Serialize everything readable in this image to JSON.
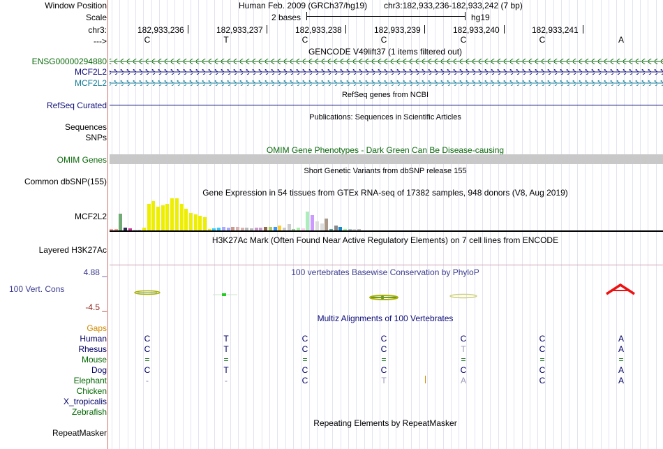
{
  "header": {
    "window_position_label": "Window Position",
    "scale_label": "Scale",
    "chrom_label": "chr3:",
    "strand_label": "--->",
    "assembly": "Human Feb. 2009 (GRCh37/hg19)",
    "position": "chr3:182,933,236-182,933,242 (7 bp)",
    "scale_text": "2 bases",
    "scale_db": "hg19",
    "coordinates": [
      "182,933,236",
      "182,933,237",
      "182,933,238",
      "182,933,239",
      "182,933,240",
      "182,933,241"
    ],
    "bases": [
      "C",
      "T",
      "C",
      "C",
      "C",
      "C",
      "A"
    ]
  },
  "tracks": {
    "gencode": {
      "title": "GENCODE V49lift37 (1 items filtered out)",
      "items": [
        "ENSG00000294880",
        "MCF2L2",
        "MCF2L2"
      ]
    },
    "refseq": {
      "title": "RefSeq genes from NCBI",
      "label": "RefSeq Curated"
    },
    "publications": {
      "title": "Publications: Sequences in Scientific Articles",
      "labels": [
        "Sequences",
        "SNPs"
      ]
    },
    "omim": {
      "title": "OMIM Gene Phenotypes - Dark Green Can Be Disease-causing",
      "label": "OMIM Genes"
    },
    "dbsnp": {
      "title": "Short Genetic Variants from dbSNP release 155",
      "label": "Common dbSNP(155)"
    },
    "gtex": {
      "title": "Gene Expression in 54 tissues from GTEx RNA-seq of 17382 samples, 948 donors (V8, Aug 2019)",
      "label": "MCF2L2"
    },
    "h3k27ac": {
      "title": "H3K27Ac Mark (Often Found Near Active Regulatory Elements) on 7 cell lines from ENCODE",
      "label": "Layered H3K27Ac"
    },
    "phylop": {
      "title": "100 vertebrates Basewise Conservation by PhyloP",
      "label": "100 Vert. Cons",
      "ymax": "4.88 _",
      "ymin": "-4.5 _"
    },
    "multiz": {
      "title": "Multiz Alignments of 100 Vertebrates",
      "gaps_label": "Gaps",
      "species": [
        {
          "name": "Human",
          "color": "#000066",
          "bases": [
            "C",
            "T",
            "C",
            "C",
            "C",
            "C",
            "A"
          ]
        },
        {
          "name": "Rhesus",
          "color": "#000066",
          "bases": [
            "C",
            "T",
            "C",
            "C",
            "T",
            "C",
            "A"
          ]
        },
        {
          "name": "Mouse",
          "color": "#006600",
          "bases": [
            "=",
            "=",
            "=",
            "=",
            "=",
            "=",
            "="
          ]
        },
        {
          "name": "Dog",
          "color": "#000066",
          "bases": [
            "C",
            "T",
            "C",
            "C",
            "C",
            "C",
            "A"
          ]
        },
        {
          "name": "Elephant",
          "color": "#006600",
          "bases": [
            "-",
            "-",
            "C",
            "T",
            "A",
            "C",
            "A"
          ]
        },
        {
          "name": "Chicken",
          "color": "#006600",
          "bases": []
        },
        {
          "name": "X_tropicalis",
          "color": "#000066",
          "bases": []
        },
        {
          "name": "Zebrafish",
          "color": "#006600",
          "bases": []
        }
      ]
    },
    "repeatmasker": {
      "title": "Repeating Elements by RepeatMasker",
      "label": "RepeatMasker"
    }
  },
  "colors": {
    "gene_green": "#0a6a0a",
    "gene_navy": "#0c0c78",
    "gene_teal": "#127a96",
    "refseq_navy": "#0c0c78",
    "omim_gray": "#c8c8c8",
    "omim_green": "#0c6a0c",
    "phylop_blue": "#3c3c90",
    "phylop_red": "#90261c",
    "gaps_orange": "#d28a00"
  },
  "gtex_chart": {
    "chart_data": {
      "type": "bar",
      "values": [
        1.2,
        1.2,
        15.4,
        2.4,
        1.8,
        0.6,
        0.8,
        2.4,
        24.1,
        26.8,
        22.0,
        22.8,
        24.1,
        29.4,
        29.4,
        24.1,
        20.1,
        16.1,
        14.7,
        13.4,
        12.1,
        1.3,
        2.2,
        2.4,
        3.0,
        2.4,
        3.4,
        3.0,
        2.4,
        2.6,
        1.6,
        2.3,
        2.4,
        3.4,
        3.4,
        3.4,
        4.5,
        2.4,
        5.9,
        1.3,
        2.7,
        1.6,
        17.4,
        14.2,
        8.3,
        6.4,
        10.7,
        1.4,
        4.3,
        2.9,
        1.4,
        1.2,
        1.4,
        1.2
      ],
      "colors": [
        "#ff9b8e",
        "#ff9b8e",
        "#70aa74",
        "#2e2e54",
        "#cc3399",
        "#d6d6d6",
        "#cccccc",
        "#eeee00",
        "#eeee00",
        "#eeee00",
        "#eeee00",
        "#eeee00",
        "#eeee00",
        "#eeee00",
        "#eeee00",
        "#eeee00",
        "#eeee00",
        "#eeee00",
        "#eeee00",
        "#eeee00",
        "#eeee00",
        "#eeee00",
        "#33ccff",
        "#33ccff",
        "#aaaaff",
        "#aaaaff",
        "#cc9988",
        "#d8b4b4",
        "#d8b4b4",
        "#b9b9b9",
        "#b9b9b9",
        "#cc99cc",
        "#cc99cc",
        "#8f6a4b",
        "#aacc66",
        "#3399ff",
        "#ffcc33",
        "#cccccc",
        "#cccccc",
        "#99cc99",
        "#aaeeaa",
        "#ffccee",
        "#aaeebb",
        "#cc99ff",
        "#dddddd",
        "#dddddd",
        "#aa9988",
        "#55aa99",
        "#888888",
        "#1188cc",
        "#99ff99",
        "#aabbcc",
        "#d6d6d6",
        "#bbbbbb"
      ]
    }
  }
}
